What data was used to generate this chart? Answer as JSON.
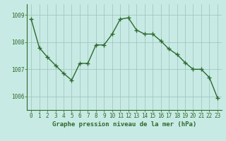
{
  "x": [
    0,
    1,
    2,
    3,
    4,
    5,
    6,
    7,
    8,
    9,
    10,
    11,
    12,
    13,
    14,
    15,
    16,
    17,
    18,
    19,
    20,
    21,
    22,
    23
  ],
  "y": [
    1008.85,
    1007.8,
    1007.45,
    1007.15,
    1006.85,
    1006.6,
    1007.22,
    1007.22,
    1007.9,
    1007.9,
    1008.3,
    1008.85,
    1008.9,
    1008.45,
    1008.3,
    1008.3,
    1008.05,
    1007.75,
    1007.55,
    1007.25,
    1007.0,
    1007.0,
    1006.7,
    1005.95
  ],
  "line_color": "#2d6a2d",
  "marker": "+",
  "marker_color": "#2d6a2d",
  "bg_color": "#c8eae4",
  "grid_color": "#9dbfba",
  "axis_label_color": "#2d6a2d",
  "tick_color": "#2d6a2d",
  "border_color": "#2d6a2d",
  "xlabel": "Graphe pression niveau de la mer (hPa)",
  "ylim": [
    1005.5,
    1009.4
  ],
  "yticks": [
    1006,
    1007,
    1008,
    1009
  ],
  "xticks": [
    0,
    1,
    2,
    3,
    4,
    5,
    6,
    7,
    8,
    9,
    10,
    11,
    12,
    13,
    14,
    15,
    16,
    17,
    18,
    19,
    20,
    21,
    22,
    23
  ],
  "xtick_labels": [
    "0",
    "1",
    "2",
    "3",
    "4",
    "5",
    "6",
    "7",
    "8",
    "9",
    "10",
    "11",
    "12",
    "13",
    "14",
    "15",
    "16",
    "17",
    "18",
    "19",
    "20",
    "21",
    "22",
    "23"
  ],
  "line_width": 1.0,
  "marker_size": 4,
  "marker_edge_width": 1.0,
  "font_size_xlabel": 6.5,
  "font_size_ticks": 5.5
}
